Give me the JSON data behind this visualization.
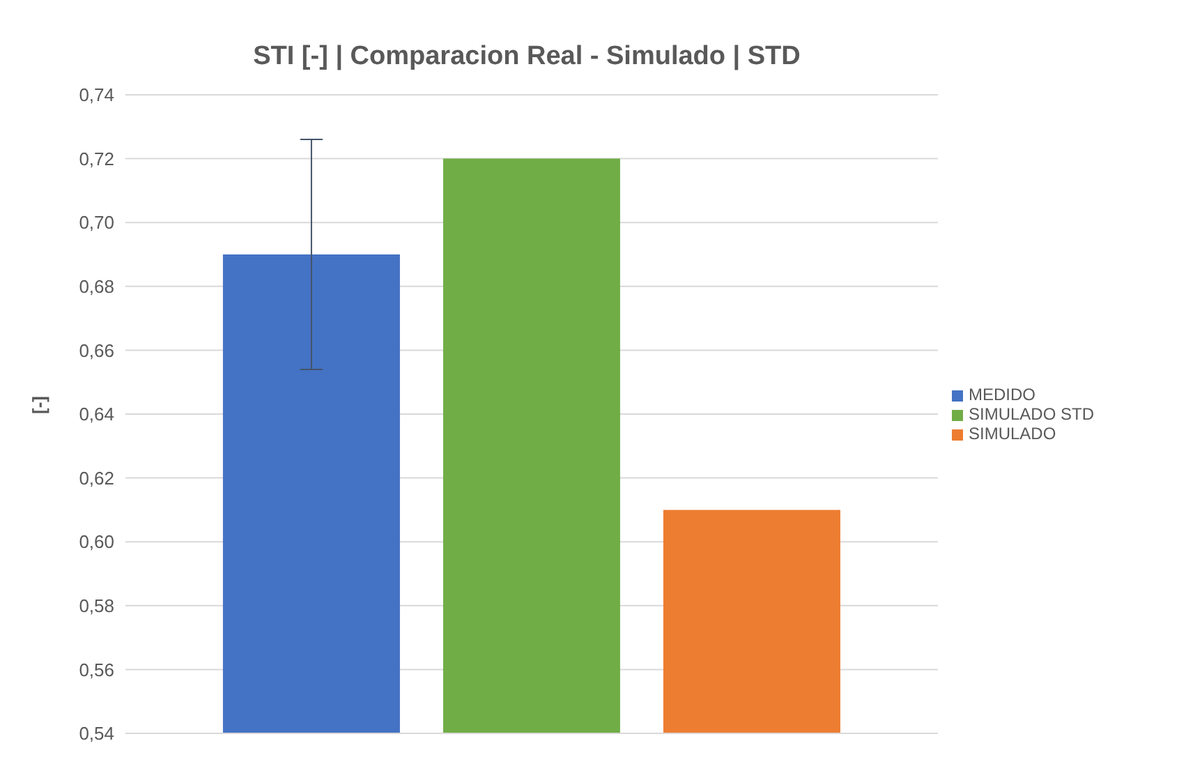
{
  "chart_data": {
    "type": "bar",
    "title": "STI [-] | Comparacion Real - Simulado | STD",
    "ylabel": "[-]",
    "categories": [
      null
    ],
    "series": [
      {
        "name": "MEDIDO",
        "color": "#4472c4",
        "values": [
          0.69
        ],
        "errors": [
          0.036
        ]
      },
      {
        "name": "SIMULADO STD",
        "color": "#70ad47",
        "values": [
          0.72
        ]
      },
      {
        "name": "SIMULADO",
        "color": "#ed7d31",
        "values": [
          0.61
        ]
      }
    ],
    "ylim": [
      0.54,
      0.74
    ],
    "yticks": [
      {
        "value": 0.54,
        "label": "0,54"
      },
      {
        "value": 0.56,
        "label": "0,56"
      },
      {
        "value": 0.58,
        "label": "0,58"
      },
      {
        "value": 0.6,
        "label": "0,60"
      },
      {
        "value": 0.62,
        "label": "0,62"
      },
      {
        "value": 0.64,
        "label": "0,64"
      },
      {
        "value": 0.66,
        "label": "0,66"
      },
      {
        "value": 0.68,
        "label": "0,68"
      },
      {
        "value": 0.7,
        "label": "0,70"
      },
      {
        "value": 0.72,
        "label": "0,72"
      },
      {
        "value": 0.74,
        "label": "0,74"
      }
    ],
    "grid": "y",
    "legend": "right"
  }
}
